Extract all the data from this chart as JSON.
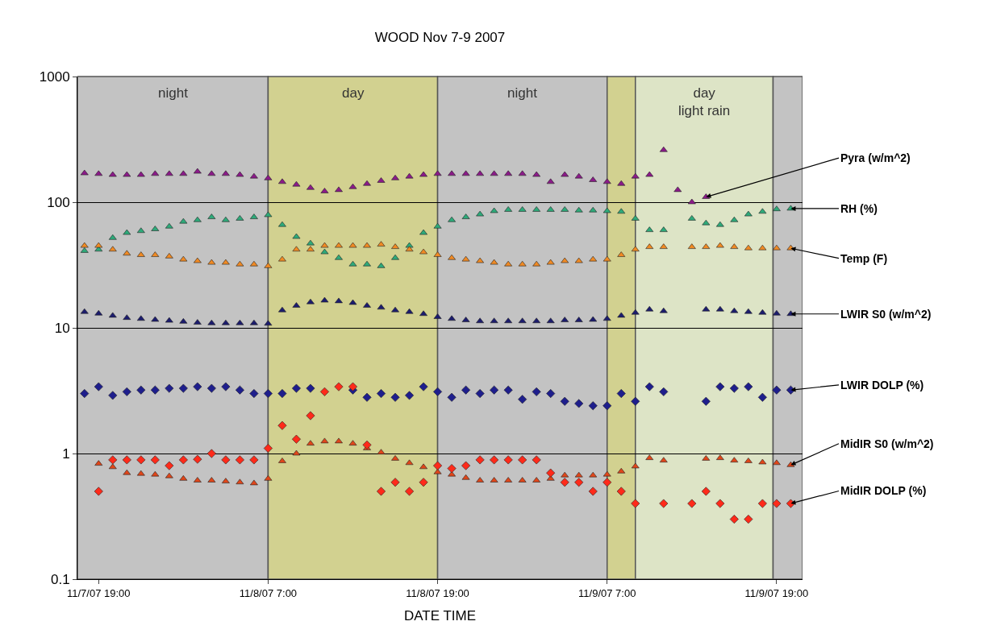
{
  "chart_data": {
    "type": "scatter",
    "title": "WOOD Nov 7-9 2007",
    "xlabel": "DATE TIME",
    "x": [
      "2007-11-07T18:00",
      "2007-11-07T19:00",
      "2007-11-07T20:00",
      "2007-11-07T21:00",
      "2007-11-07T22:00",
      "2007-11-07T23:00",
      "2007-11-08T00:00",
      "2007-11-08T01:00",
      "2007-11-08T02:00",
      "2007-11-08T03:00",
      "2007-11-08T04:00",
      "2007-11-08T05:00",
      "2007-11-08T06:00",
      "2007-11-08T07:00",
      "2007-11-08T08:00",
      "2007-11-08T09:00",
      "2007-11-08T10:00",
      "2007-11-08T11:00",
      "2007-11-08T12:00",
      "2007-11-08T13:00",
      "2007-11-08T14:00",
      "2007-11-08T15:00",
      "2007-11-08T16:00",
      "2007-11-08T17:00",
      "2007-11-08T18:00",
      "2007-11-08T19:00",
      "2007-11-08T20:00",
      "2007-11-08T21:00",
      "2007-11-08T22:00",
      "2007-11-08T23:00",
      "2007-11-09T00:00",
      "2007-11-09T01:00",
      "2007-11-09T02:00",
      "2007-11-09T03:00",
      "2007-11-09T04:00",
      "2007-11-09T05:00",
      "2007-11-09T06:00",
      "2007-11-09T07:00",
      "2007-11-09T08:00",
      "2007-11-09T09:00",
      "2007-11-09T10:00",
      "2007-11-09T11:00",
      "2007-11-09T12:00",
      "2007-11-09T13:00",
      "2007-11-09T14:00",
      "2007-11-09T15:00",
      "2007-11-09T16:00",
      "2007-11-09T17:00",
      "2007-11-09T18:00",
      "2007-11-09T19:00",
      "2007-11-09T20:00"
    ],
    "series": [
      {
        "name": "Pyra (w/m^2)",
        "color": "#8b1a89",
        "marker": "triangle",
        "values": [
          170,
          168,
          165,
          165,
          165,
          168,
          168,
          168,
          175,
          168,
          168,
          165,
          160,
          155,
          145,
          138,
          130,
          122,
          125,
          132,
          140,
          148,
          155,
          160,
          165,
          168,
          168,
          168,
          168,
          168,
          168,
          168,
          165,
          145,
          165,
          160,
          150,
          145,
          140,
          160,
          165,
          260,
          125,
          100,
          110,
          null,
          null,
          null,
          null,
          null,
          null
        ]
      },
      {
        "name": "RH (%)",
        "color": "#2eaa7a",
        "marker": "triangle",
        "values": [
          41,
          42,
          52,
          57,
          59,
          61,
          64,
          70,
          72,
          76,
          72,
          74,
          76,
          79,
          66,
          53,
          47,
          40,
          36,
          32,
          32,
          31,
          36,
          45,
          57,
          64,
          72,
          76,
          80,
          85,
          87,
          87,
          87,
          87,
          87,
          86,
          86,
          85,
          84,
          74,
          60,
          60,
          null,
          74,
          68,
          66,
          72,
          80,
          84,
          88,
          89
        ]
      },
      {
        "name": "Temp (F)",
        "color": "#f08a24",
        "marker": "triangle",
        "values": [
          45,
          45,
          42,
          39,
          38,
          38,
          37,
          35,
          34,
          33,
          33,
          32,
          32,
          31,
          35,
          42,
          42,
          45,
          45,
          45,
          45,
          46,
          44,
          42,
          40,
          38,
          36,
          35,
          34,
          33,
          32,
          32,
          32,
          33,
          34,
          34,
          35,
          35,
          38,
          42,
          44,
          44,
          null,
          44,
          44,
          45,
          44,
          43,
          43,
          43,
          43
        ]
      },
      {
        "name": "LWIR S0 (w/m^2)",
        "color": "#1c1c6e",
        "marker": "triangle",
        "values": [
          13.4,
          13,
          12.5,
          12,
          11.8,
          11.6,
          11.4,
          11.2,
          11,
          10.9,
          10.9,
          10.9,
          10.9,
          10.8,
          13.8,
          15,
          16,
          16.5,
          16.3,
          15.8,
          15,
          14.5,
          13.8,
          13.4,
          12.9,
          12.2,
          11.8,
          11.5,
          11.3,
          11.3,
          11.3,
          11.3,
          11.3,
          11.3,
          11.5,
          11.5,
          11.6,
          11.8,
          12.5,
          13.2,
          14,
          13.6,
          null,
          null,
          14,
          14,
          13.6,
          13.4,
          13.2,
          13,
          12.9
        ]
      },
      {
        "name": "LWIR DOLP (%)",
        "color": "#1e1e8c",
        "marker": "diamond",
        "values": [
          3.0,
          3.4,
          2.9,
          3.1,
          3.2,
          3.2,
          3.3,
          3.3,
          3.4,
          3.3,
          3.4,
          3.2,
          3.0,
          3.0,
          3.0,
          3.3,
          3.3,
          null,
          null,
          3.2,
          2.8,
          3.0,
          2.8,
          2.9,
          3.4,
          3.1,
          2.8,
          3.2,
          3.0,
          3.2,
          3.2,
          2.7,
          3.1,
          3.0,
          2.6,
          2.5,
          2.4,
          2.4,
          3.0,
          2.6,
          3.4,
          3.1,
          null,
          null,
          2.6,
          3.4,
          3.3,
          3.4,
          2.8,
          3.2,
          3.2
        ]
      },
      {
        "name": "MidIR S0 (w/m^2)",
        "color": "#e0461a",
        "marker": "triangle",
        "values": [
          null,
          0.83,
          0.78,
          0.7,
          0.69,
          0.68,
          0.66,
          0.63,
          0.61,
          0.61,
          0.6,
          0.59,
          0.58,
          0.63,
          0.87,
          1.0,
          1.2,
          1.25,
          1.25,
          1.2,
          1.1,
          1.02,
          0.91,
          0.84,
          0.78,
          0.71,
          0.68,
          0.64,
          0.61,
          0.61,
          0.61,
          0.61,
          0.61,
          0.63,
          0.67,
          0.67,
          0.67,
          0.68,
          0.72,
          0.79,
          0.92,
          0.88,
          null,
          null,
          0.91,
          0.92,
          0.88,
          0.87,
          0.85,
          0.84,
          0.81
        ]
      },
      {
        "name": "MidIR DOLP (%)",
        "color": "#ff2a1a",
        "marker": "diamond",
        "values": [
          null,
          0.5,
          0.89,
          0.89,
          0.89,
          0.89,
          0.8,
          0.89,
          0.9,
          1.0,
          0.89,
          0.89,
          0.89,
          1.1,
          1.67,
          1.3,
          2.0,
          3.1,
          3.4,
          3.4,
          1.17,
          0.5,
          0.59,
          0.5,
          0.59,
          0.8,
          0.76,
          0.8,
          0.89,
          0.89,
          0.89,
          0.89,
          0.89,
          0.7,
          0.59,
          0.59,
          0.5,
          0.59,
          0.5,
          0.4,
          null,
          0.4,
          null,
          0.4,
          0.5,
          0.4,
          0.3,
          0.3,
          0.4,
          0.4,
          0.4
        ]
      }
    ],
    "xlim": [
      "2007-11-07T17:30",
      "2007-11-09T20:50"
    ],
    "xticks": [
      {
        "value": "2007-11-07T19:00",
        "label": "11/7/07 19:00"
      },
      {
        "value": "2007-11-08T07:00",
        "label": "11/8/07 7:00"
      },
      {
        "value": "2007-11-08T19:00",
        "label": "11/8/07 19:00"
      },
      {
        "value": "2007-11-09T07:00",
        "label": "11/9/07 7:00"
      },
      {
        "value": "2007-11-09T19:00",
        "label": "11/9/07 19:00"
      }
    ],
    "ylim": [
      0.1,
      1000
    ],
    "yticks": [
      0.1,
      1,
      10,
      100,
      1000
    ],
    "log": "y",
    "grid": "y",
    "legend": false,
    "bands": [
      {
        "axis": "x",
        "from": "2007-11-07T17:30",
        "to": "2007-11-08T07:00",
        "label": "night",
        "color": "#c3c3c3"
      },
      {
        "axis": "x",
        "from": "2007-11-08T07:00",
        "to": "2007-11-08T19:00",
        "label": "day",
        "color": "#d2d190"
      },
      {
        "axis": "x",
        "from": "2007-11-08T19:00",
        "to": "2007-11-09T07:00",
        "label": "night",
        "color": "#c3c3c3"
      },
      {
        "axis": "x",
        "from": "2007-11-09T07:00",
        "to": "2007-11-09T09:00",
        "color": "#d2d190"
      },
      {
        "axis": "x",
        "from": "2007-11-09T09:00",
        "to": "2007-11-09T18:45",
        "label": "day\nlight rain",
        "color": "#dde4c6"
      },
      {
        "axis": "x",
        "from": "2007-11-09T18:45",
        "to": "2007-11-09T20:50",
        "color": "#c3c3c3"
      }
    ]
  }
}
